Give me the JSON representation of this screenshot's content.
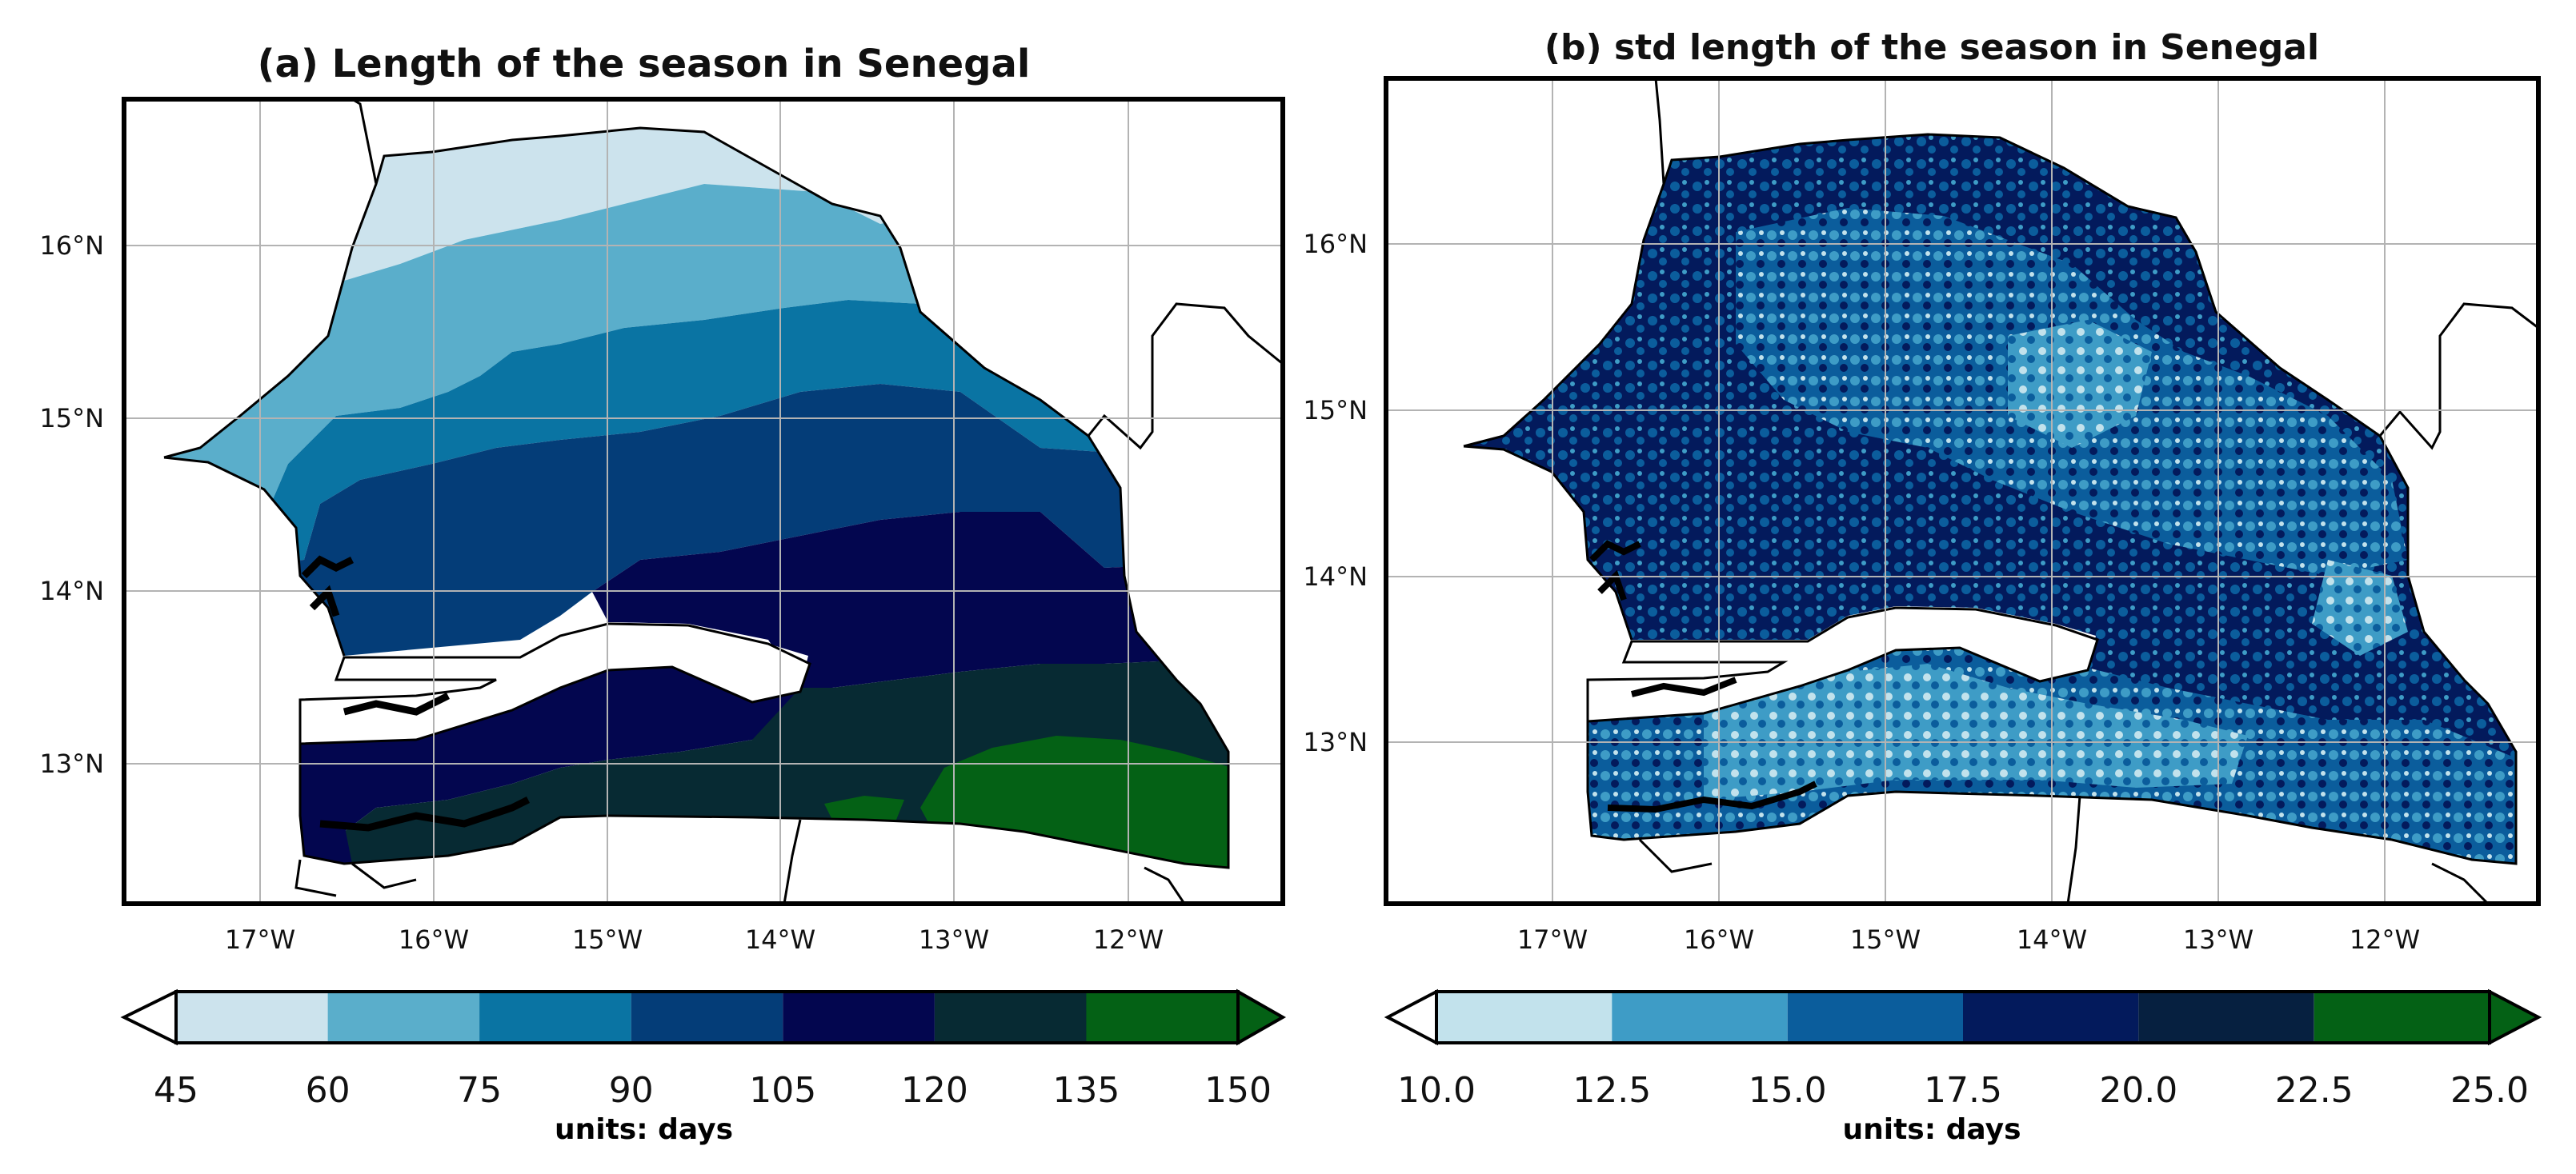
{
  "panels": [
    {
      "title": "(a) Length of the season in Senegal",
      "lat_labels": [
        "16°N",
        "15°N",
        "14°N",
        "13°N"
      ],
      "lon_labels": [
        "17°W",
        "16°W",
        "15°W",
        "14°W",
        "13°W",
        "12°W"
      ],
      "colorbar": {
        "ticks": [
          "45",
          "60",
          "75",
          "90",
          "105",
          "120",
          "135",
          "150"
        ],
        "colors": [
          "#cce3ed",
          "#5aaecb",
          "#0a74a3",
          "#043d78",
          "#03064f",
          "#072a33",
          "#046115"
        ],
        "units": "units: days"
      }
    },
    {
      "title": "(b) std length of the season in Senegal",
      "lat_labels": [
        "16°N",
        "15°N",
        "14°N",
        "13°N"
      ],
      "lon_labels": [
        "17°W",
        "16°W",
        "15°W",
        "14°W",
        "13°W",
        "12°W"
      ],
      "colorbar": {
        "ticks": [
          "10.0",
          "12.5",
          "15.0",
          "17.5",
          "20.0",
          "22.5",
          "25.0"
        ],
        "colors": [
          "#c2e2ec",
          "#3e9cc6",
          "#0b5d9c",
          "#031a5c",
          "#062040",
          "#046115"
        ],
        "units": "units: days"
      }
    }
  ]
}
